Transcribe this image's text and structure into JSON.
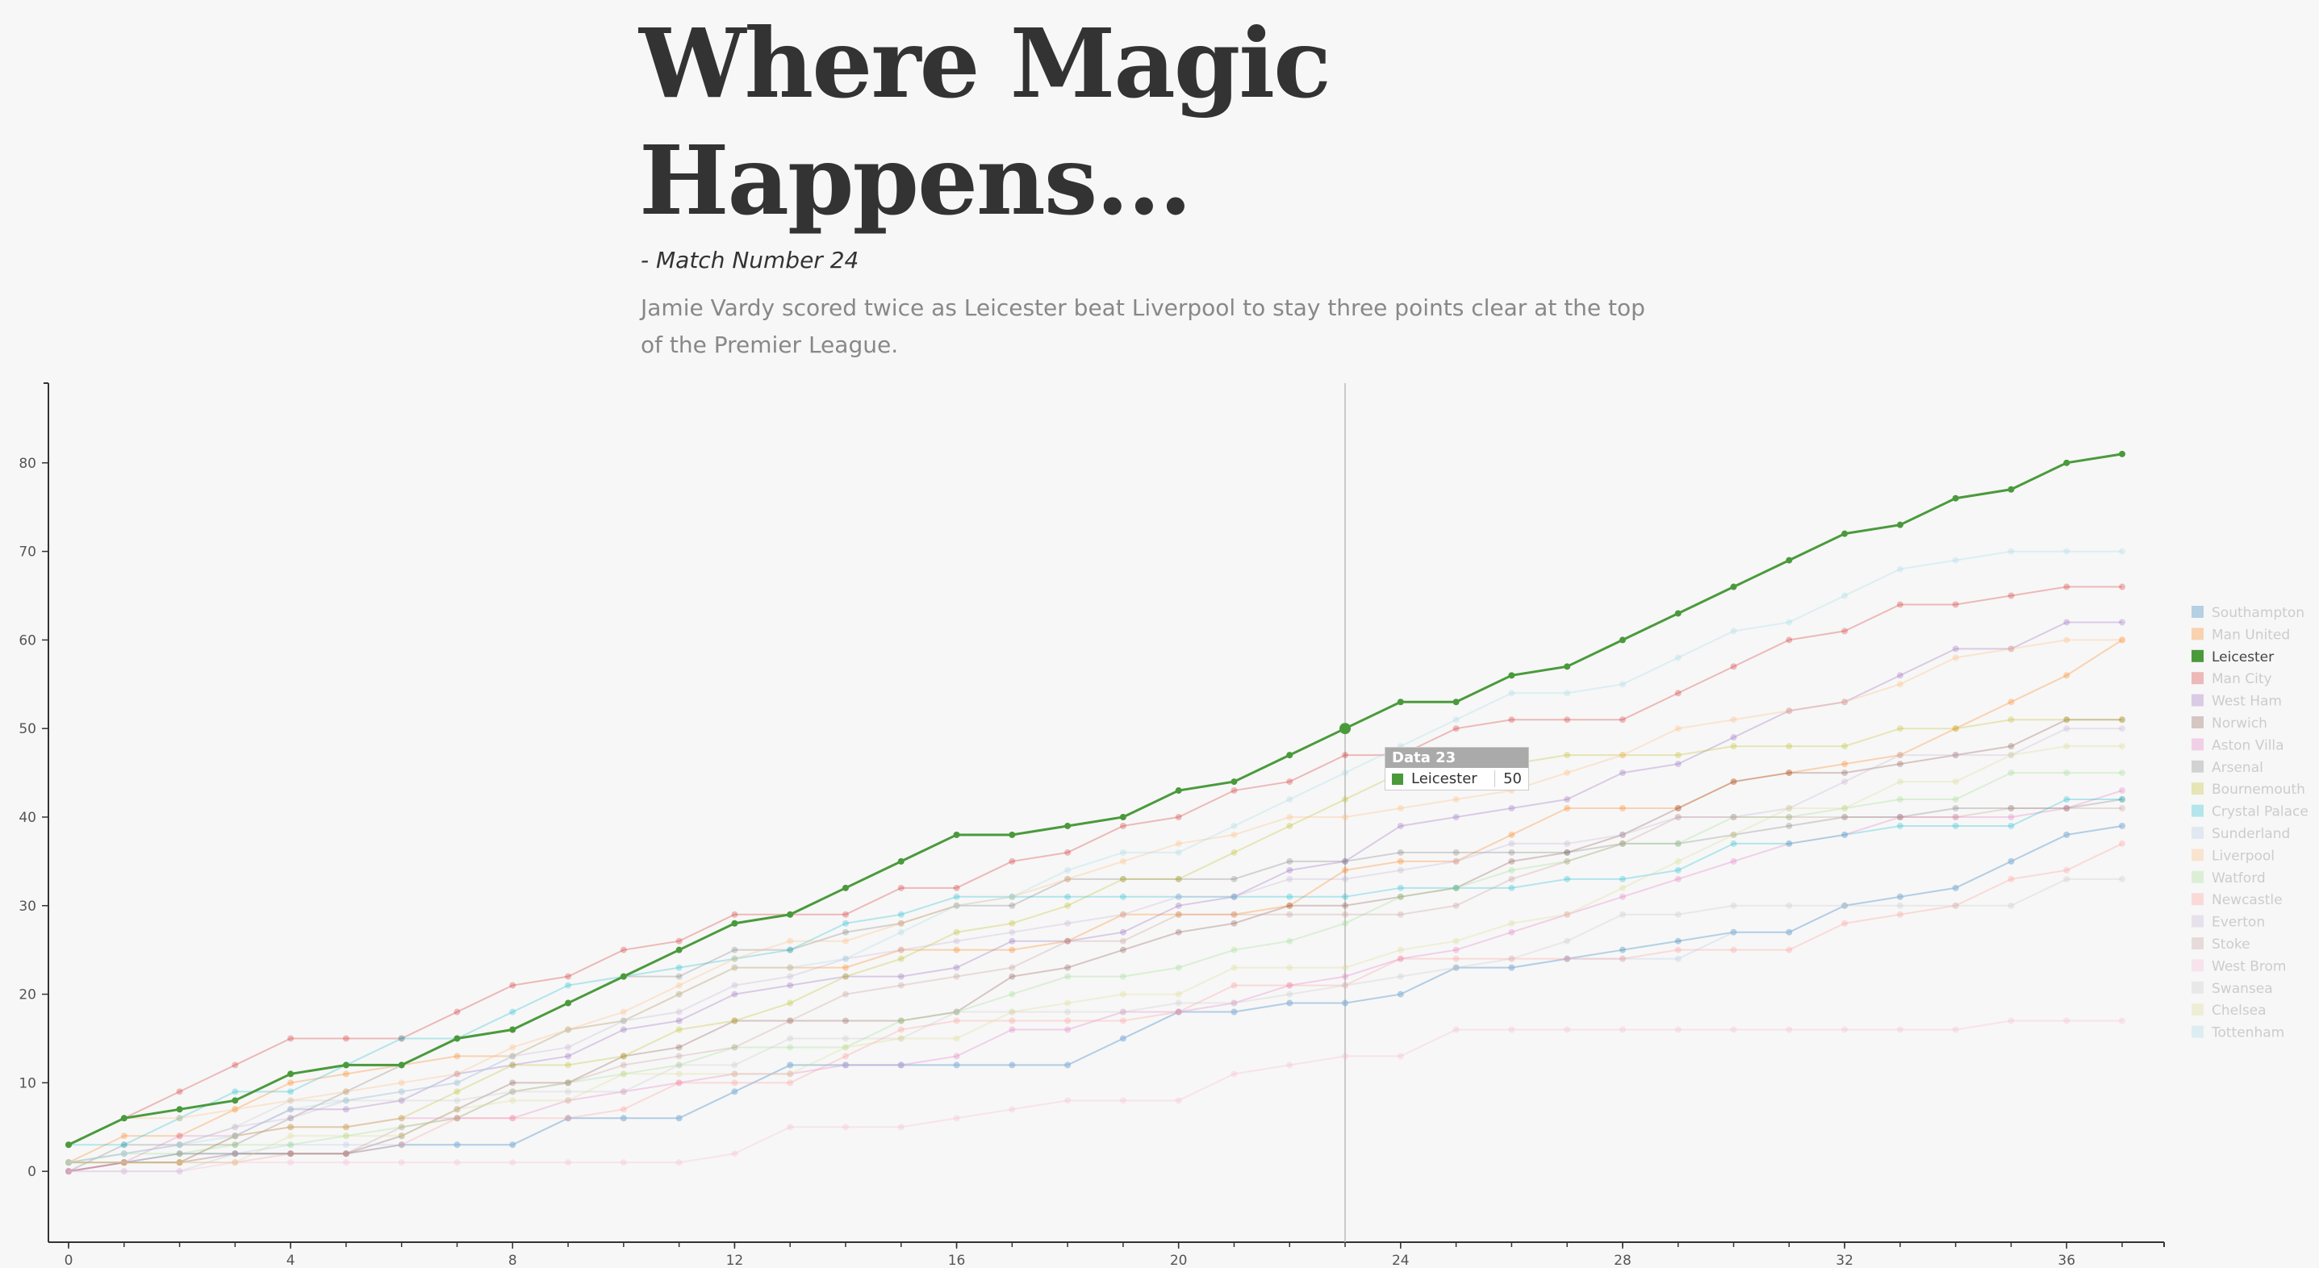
{
  "header": {
    "title": "Where Magic Happens...",
    "subtitle": "- Match Number 24",
    "description": "Jamie Vardy scored twice as Leicester beat Liverpool to stay three points clear at the top of the Premier League."
  },
  "tooltip": {
    "title": "Data 23",
    "series": "Leicester",
    "value": "50"
  },
  "colors": {
    "highlight": "#4a9a3c",
    "axis": "#333333",
    "focus_line": "#bbbbbb",
    "palette": [
      "#1f77b4",
      "#ff7f0e",
      "#2ca02c",
      "#d62728",
      "#9467bd",
      "#8c564b",
      "#e377c2",
      "#7f7f7f",
      "#bcbd22",
      "#17becf",
      "#aec7e8",
      "#ffbb78",
      "#98df8a",
      "#ff9896",
      "#c5b0d5",
      "#c49c94",
      "#f7b6d2",
      "#c7c7c7",
      "#dbdb8d",
      "#9edae5"
    ]
  },
  "chart_data": {
    "type": "line",
    "x_ticks": [
      0,
      4,
      8,
      12,
      16,
      20,
      24,
      28,
      32,
      36
    ],
    "y_ticks": [
      0,
      10,
      20,
      30,
      40,
      50,
      60,
      70,
      80
    ],
    "xlim": [
      0,
      37
    ],
    "ylim": [
      -8,
      89
    ],
    "legend_position": "right",
    "focus_x": 23,
    "highlight_series": "Leicester",
    "series": [
      {
        "name": "Southampton",
        "values": [
          0,
          1,
          2,
          2,
          2,
          2,
          3,
          3,
          3,
          6,
          6,
          6,
          9,
          12,
          12,
          12,
          12,
          12,
          12,
          15,
          18,
          18,
          19,
          19,
          20,
          23,
          23,
          24,
          25,
          26,
          27,
          27,
          30,
          31,
          32,
          35,
          38,
          39
        ]
      },
      {
        "name": "Man United",
        "values": [
          1,
          4,
          4,
          7,
          10,
          11,
          12,
          13,
          13,
          16,
          17,
          20,
          23,
          23,
          23,
          25,
          25,
          25,
          26,
          29,
          29,
          29,
          30,
          34,
          35,
          35,
          38,
          41,
          41,
          41,
          44,
          45,
          46,
          47,
          50,
          53,
          56,
          60
        ]
      },
      {
        "name": "Leicester",
        "values": [
          3,
          6,
          7,
          8,
          11,
          12,
          12,
          15,
          16,
          19,
          22,
          25,
          28,
          29,
          32,
          35,
          38,
          38,
          39,
          40,
          43,
          44,
          47,
          50,
          53,
          53,
          56,
          57,
          60,
          63,
          66,
          69,
          72,
          73,
          76,
          77,
          80,
          81
        ]
      },
      {
        "name": "Man City",
        "values": [
          3,
          6,
          9,
          12,
          15,
          15,
          15,
          18,
          21,
          22,
          25,
          26,
          29,
          29,
          29,
          32,
          32,
          35,
          36,
          39,
          40,
          43,
          44,
          47,
          47,
          50,
          51,
          51,
          51,
          54,
          57,
          60,
          61,
          64,
          64,
          65,
          66,
          66
        ]
      },
      {
        "name": "West Ham",
        "values": [
          1,
          1,
          1,
          4,
          7,
          7,
          8,
          11,
          12,
          13,
          16,
          17,
          20,
          21,
          22,
          22,
          23,
          26,
          26,
          27,
          30,
          31,
          34,
          35,
          39,
          40,
          41,
          42,
          45,
          46,
          49,
          52,
          53,
          56,
          59,
          59,
          62,
          62
        ]
      },
      {
        "name": "Norwich",
        "values": [
          0,
          1,
          1,
          2,
          2,
          2,
          4,
          7,
          10,
          10,
          13,
          14,
          17,
          17,
          17,
          17,
          18,
          22,
          23,
          25,
          27,
          28,
          30,
          30,
          31,
          32,
          35,
          36,
          38,
          41,
          44,
          45,
          45,
          46,
          47,
          48,
          51,
          51
        ]
      },
      {
        "name": "Aston Villa",
        "values": [
          0,
          1,
          4,
          4,
          5,
          5,
          6,
          6,
          6,
          8,
          9,
          10,
          11,
          11,
          12,
          12,
          13,
          16,
          16,
          18,
          18,
          19,
          21,
          22,
          24,
          25,
          27,
          29,
          31,
          33,
          35,
          37,
          38,
          40,
          40,
          40,
          41,
          43
        ]
      },
      {
        "name": "Arsenal",
        "values": [
          0,
          3,
          3,
          3,
          6,
          9,
          12,
          15,
          16,
          19,
          22,
          22,
          25,
          25,
          27,
          28,
          30,
          30,
          33,
          33,
          33,
          33,
          35,
          35,
          36,
          36,
          36,
          36,
          37,
          37,
          38,
          39,
          40,
          40,
          41,
          41,
          41,
          42
        ]
      },
      {
        "name": "Bournemouth",
        "values": [
          1,
          1,
          1,
          4,
          5,
          5,
          6,
          9,
          12,
          12,
          13,
          16,
          17,
          19,
          22,
          24,
          27,
          28,
          30,
          33,
          33,
          36,
          39,
          42,
          45,
          45,
          46,
          47,
          47,
          47,
          48,
          48,
          48,
          50,
          50,
          51,
          51,
          51
        ]
      },
      {
        "name": "Crystal Palace",
        "values": [
          3,
          3,
          6,
          9,
          9,
          12,
          15,
          15,
          18,
          21,
          22,
          23,
          24,
          25,
          28,
          29,
          31,
          31,
          31,
          31,
          31,
          31,
          31,
          31,
          32,
          32,
          32,
          33,
          33,
          34,
          37,
          37,
          38,
          39,
          39,
          39,
          42,
          42
        ]
      },
      {
        "name": "Sunderland",
        "values": [
          0,
          0,
          0,
          2,
          3,
          3,
          3,
          3,
          3,
          6,
          6,
          6,
          9,
          12,
          12,
          12,
          12,
          12,
          12,
          15,
          18,
          18,
          19,
          19,
          20,
          23,
          23,
          24,
          24,
          24,
          27,
          27,
          30,
          31,
          32,
          35,
          38,
          39
        ]
      },
      {
        "name": "Liverpool",
        "values": [
          3,
          6,
          6,
          7,
          8,
          9,
          10,
          11,
          14,
          16,
          18,
          21,
          24,
          26,
          26,
          28,
          30,
          31,
          33,
          35,
          37,
          38,
          40,
          40,
          41,
          42,
          43,
          45,
          47,
          50,
          51,
          52,
          53,
          55,
          58,
          59,
          60,
          60
        ]
      },
      {
        "name": "Watford",
        "values": [
          1,
          2,
          2,
          3,
          3,
          4,
          5,
          6,
          9,
          10,
          11,
          12,
          14,
          14,
          14,
          17,
          18,
          20,
          22,
          22,
          23,
          25,
          26,
          28,
          31,
          32,
          34,
          35,
          37,
          37,
          40,
          40,
          41,
          42,
          42,
          45,
          45,
          45
        ]
      },
      {
        "name": "Newcastle",
        "values": [
          0,
          1,
          1,
          1,
          2,
          2,
          3,
          6,
          6,
          6,
          7,
          10,
          10,
          10,
          13,
          16,
          17,
          17,
          17,
          17,
          18,
          21,
          21,
          21,
          24,
          24,
          24,
          24,
          24,
          25,
          25,
          25,
          28,
          29,
          30,
          33,
          34,
          37
        ]
      },
      {
        "name": "Everton",
        "values": [
          1,
          2,
          3,
          5,
          6,
          8,
          9,
          10,
          13,
          14,
          17,
          18,
          21,
          22,
          24,
          25,
          26,
          27,
          28,
          29,
          31,
          31,
          33,
          33,
          34,
          35,
          37,
          37,
          38,
          40,
          40,
          41,
          44,
          47,
          47,
          47,
          50,
          50
        ]
      },
      {
        "name": "Stoke",
        "values": [
          1,
          1,
          2,
          2,
          2,
          2,
          5,
          6,
          9,
          10,
          12,
          13,
          14,
          17,
          20,
          21,
          22,
          23,
          26,
          26,
          29,
          29,
          29,
          29,
          29,
          30,
          33,
          35,
          37,
          40,
          40,
          40,
          40,
          40,
          40,
          41,
          41,
          41
        ]
      },
      {
        "name": "West Brom",
        "values": [
          0,
          0,
          0,
          1,
          1,
          1,
          1,
          1,
          1,
          1,
          1,
          1,
          2,
          5,
          5,
          5,
          6,
          7,
          8,
          8,
          8,
          11,
          12,
          13,
          13,
          16,
          16,
          16,
          16,
          16,
          16,
          16,
          16,
          16,
          16,
          17,
          17,
          17
        ]
      },
      {
        "name": "Swansea",
        "values": [
          1,
          2,
          3,
          5,
          8,
          8,
          8,
          8,
          9,
          9,
          9,
          12,
          12,
          15,
          15,
          15,
          18,
          18,
          18,
          18,
          19,
          19,
          20,
          21,
          22,
          23,
          24,
          26,
          29,
          29,
          30,
          30,
          30,
          30,
          30,
          30,
          33,
          33
        ]
      },
      {
        "name": "Chelsea",
        "values": [
          1,
          1,
          1,
          1,
          4,
          4,
          4,
          7,
          8,
          8,
          11,
          11,
          11,
          11,
          14,
          15,
          15,
          18,
          19,
          20,
          20,
          23,
          23,
          23,
          25,
          26,
          28,
          29,
          32,
          35,
          38,
          41,
          41,
          44,
          44,
          47,
          48,
          48
        ]
      },
      {
        "name": "Tottenham",
        "values": [
          1,
          2,
          3,
          4,
          7,
          8,
          9,
          10,
          13,
          16,
          17,
          20,
          23,
          23,
          24,
          27,
          30,
          31,
          34,
          36,
          36,
          39,
          42,
          45,
          48,
          51,
          54,
          54,
          55,
          58,
          61,
          62,
          65,
          68,
          69,
          70,
          70,
          70
        ]
      }
    ]
  }
}
